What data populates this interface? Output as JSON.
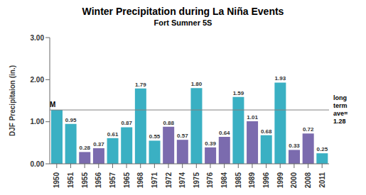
{
  "chart_data": {
    "type": "bar",
    "title": "Winter Precipitation during La Niña Events",
    "subtitle": "Fort Sumner 5S",
    "ylabel": "DJF Precipitaion (in.)",
    "categories": [
      "1950",
      "1951",
      "1955",
      "1956",
      "1957",
      "1965",
      "1968",
      "1971",
      "1972",
      "1974",
      "1975",
      "1976",
      "1984",
      "1985",
      "1989",
      "1996",
      "1999",
      "2000",
      "2008",
      "2011"
    ],
    "values": [
      1.28,
      0.95,
      0.28,
      0.37,
      0.61,
      0.87,
      1.79,
      0.55,
      0.88,
      0.57,
      1.8,
      0.39,
      0.64,
      1.59,
      1.01,
      0.68,
      1.93,
      0.33,
      0.72,
      0.25
    ],
    "value_labels": [
      null,
      "0.95",
      "0.28",
      "0.37",
      "0.61",
      "0.87",
      "1.79",
      "0.55",
      "0.88",
      "0.57",
      "1.80",
      "0.39",
      "0.64",
      "1.59",
      "1.01",
      "0.68",
      "1.93",
      "0.33",
      "0.72",
      "0.25"
    ],
    "colors": [
      "#3ab0c3",
      "#3ab0c3",
      "#7b6bae",
      "#7b6bae",
      "#3ab0c3",
      "#3ab0c3",
      "#3ab0c3",
      "#3ab0c3",
      "#7b6bae",
      "#7b6bae",
      "#3ab0c3",
      "#7b6bae",
      "#7b6bae",
      "#3ab0c3",
      "#7b6bae",
      "#3ab0c3",
      "#3ab0c3",
      "#7b6bae",
      "#7b6bae",
      "#3ab0c3"
    ],
    "ylim": [
      0,
      3.0
    ],
    "yticks": [
      {
        "value": 0,
        "label": "0.00"
      },
      {
        "value": 1,
        "label": "1.00"
      },
      {
        "value": 2,
        "label": "2.00"
      },
      {
        "value": 3,
        "label": "3.00"
      }
    ],
    "grid": false,
    "data_labels": true,
    "annotations": [
      {
        "category": "1950",
        "text": "M"
      }
    ],
    "reference_line": {
      "value": 1.28,
      "label": "long\nterm\nave=\n1.28",
      "color": "#808080"
    }
  }
}
